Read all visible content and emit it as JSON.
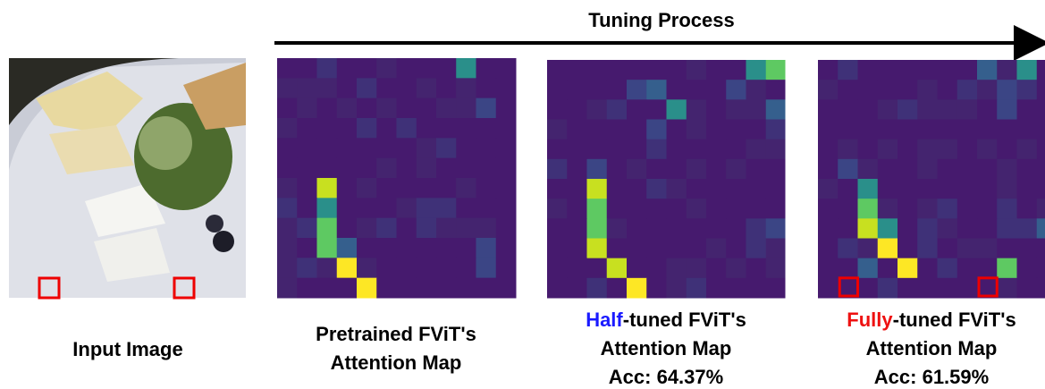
{
  "header": {
    "title": "Tuning Process"
  },
  "input": {
    "caption": "Input Image"
  },
  "maps": [
    {
      "caption_lines": [
        "Pretrained FViT's",
        "Attention Map"
      ]
    },
    {
      "highlight": "Half",
      "caption_lines": [
        "-tuned FViT's",
        "Attention Map"
      ],
      "accuracy": "Acc: 64.37%"
    },
    {
      "highlight": "Fully",
      "caption_lines": [
        "-tuned FViT's",
        "Attention Map"
      ],
      "accuracy": "Acc: 61.59%"
    }
  ]
}
